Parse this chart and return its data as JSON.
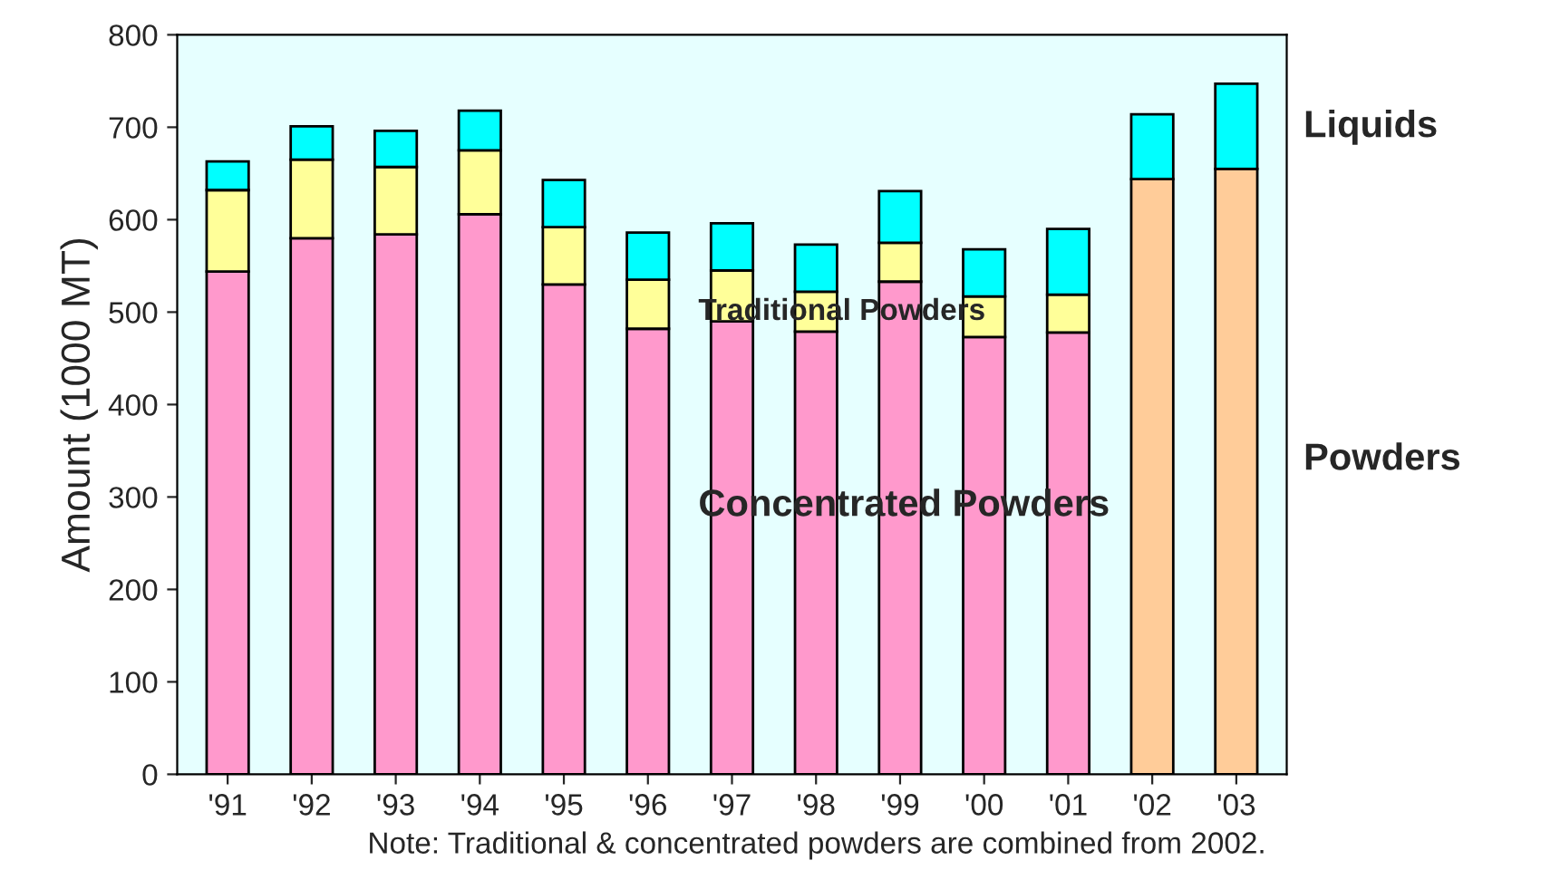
{
  "chart_data": {
    "type": "bar",
    "stacked": true,
    "legend": false,
    "grid": false,
    "ylabel": "Amount (1000 MT)",
    "categories": [
      "'91",
      "'92",
      "'93",
      "'94",
      "'95",
      "'96",
      "'97",
      "'98",
      "'99",
      "'00",
      "'01",
      "'02",
      "'03"
    ],
    "ylim": [
      0,
      800
    ],
    "yticks": [
      0,
      100,
      200,
      300,
      400,
      500,
      600,
      700,
      800
    ],
    "series": [
      {
        "name": "Concentrated Powders",
        "color": "#ff99cc",
        "values": [
          544,
          580,
          584,
          606,
          530,
          482,
          490,
          479,
          533,
          473,
          478,
          null,
          null
        ]
      },
      {
        "name": "Traditional Powders",
        "color": "#ffff99",
        "values": [
          88,
          85,
          73,
          69,
          62,
          53,
          55,
          43,
          42,
          44,
          41,
          null,
          null
        ]
      },
      {
        "name": "Powders",
        "color": "#ffcc99",
        "values": [
          null,
          null,
          null,
          null,
          null,
          null,
          null,
          null,
          null,
          null,
          null,
          644,
          655
        ]
      },
      {
        "name": "Liquids",
        "color": "#00ffff",
        "values": [
          31,
          36,
          39,
          43,
          51,
          51,
          51,
          51,
          56,
          51,
          71,
          70,
          92
        ]
      }
    ],
    "annotations": [
      "Note: Traditional & concentrated powders are combined from 2002."
    ]
  }
}
